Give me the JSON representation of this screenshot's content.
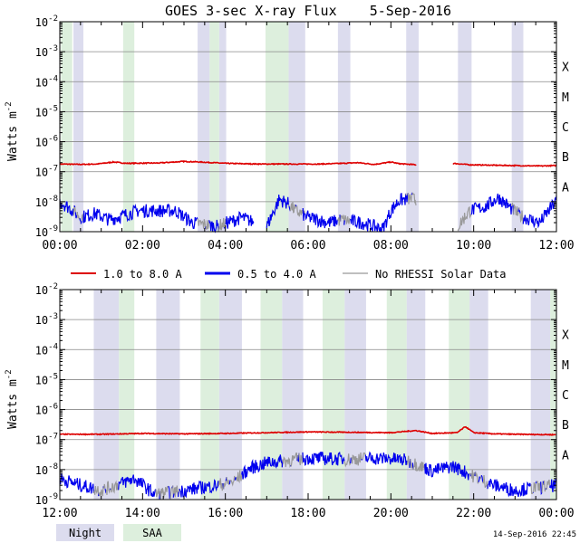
{
  "title": "GOES 3-sec X-ray Flux    5-Sep-2016",
  "ylabel": "Watts m",
  "ylabel_sup": "-2",
  "footer_timestamp": "14-Sep-2016 22:45",
  "legend": {
    "long": "1.0 to 8.0 A",
    "short": "0.5 to 4.0 A",
    "norhessi": "No RHESSI Solar Data",
    "night": "Night",
    "saa": "SAA"
  },
  "colors": {
    "long": "#dd0000",
    "short": "#0000ee",
    "norhessi": "#999999",
    "night": "#dcdcee",
    "saa": "#ddefdd",
    "grid": "#888888"
  },
  "chart_data": [
    {
      "type": "line",
      "panel": "top",
      "x_unit": "hours UT",
      "xlim": [
        0,
        12
      ],
      "x_tick_labels": [
        "00:00",
        "02:00",
        "04:00",
        "06:00",
        "08:00",
        "10:00",
        "12:00"
      ],
      "y_scale": "log",
      "ylim": [
        1e-09,
        0.01
      ],
      "y_tick_labels": [
        {
          "base": "10",
          "exp": "-2"
        },
        {
          "base": "10",
          "exp": "-3"
        },
        {
          "base": "10",
          "exp": "-4"
        },
        {
          "base": "10",
          "exp": "-5"
        },
        {
          "base": "10",
          "exp": "-6"
        },
        {
          "base": "10",
          "exp": "-7"
        },
        {
          "base": "10",
          "exp": "-8"
        },
        {
          "base": "10",
          "exp": "-9"
        }
      ],
      "flare_classes": [
        "X",
        "M",
        "C",
        "B",
        "A"
      ],
      "night_intervals": [
        [
          0.33,
          0.57
        ],
        [
          3.33,
          3.62
        ],
        [
          3.85,
          4.02
        ],
        [
          5.53,
          5.93
        ],
        [
          6.72,
          7.02
        ],
        [
          8.37,
          8.67
        ],
        [
          9.62,
          9.95
        ],
        [
          10.92,
          11.2
        ]
      ],
      "saa_intervals": [
        [
          0.03,
          0.3
        ],
        [
          1.53,
          1.8
        ],
        [
          3.62,
          3.85
        ],
        [
          4.97,
          5.53
        ]
      ],
      "series": [
        {
          "name": "1.0 to 8.0 A",
          "segments": [
            {
              "flux": [
                [
                  0,
                  1.8e-07
                ],
                [
                  0.5,
                  1.75e-07
                ],
                [
                  0.9,
                  1.8e-07
                ],
                [
                  1.3,
                  2.1e-07
                ],
                [
                  1.6,
                  1.9e-07
                ],
                [
                  2.4,
                  1.95e-07
                ],
                [
                  3.0,
                  2.2e-07
                ],
                [
                  3.4,
                  2.1e-07
                ],
                [
                  4.0,
                  1.9e-07
                ],
                [
                  4.8,
                  1.8e-07
                ],
                [
                  5.5,
                  1.8e-07
                ],
                [
                  6.3,
                  1.8e-07
                ],
                [
                  6.85,
                  1.9e-07
                ],
                [
                  7.2,
                  2e-07
                ],
                [
                  7.6,
                  1.75e-07
                ],
                [
                  8.0,
                  2.1e-07
                ],
                [
                  8.2,
                  1.85e-07
                ],
                [
                  8.62,
                  1.7e-07
                ]
              ]
            },
            {
              "flux": [
                [
                  9.5,
                  1.9e-07
                ],
                [
                  9.9,
                  1.7e-07
                ],
                [
                  10.4,
                  1.65e-07
                ],
                [
                  11.0,
                  1.6e-07
                ],
                [
                  11.6,
                  1.55e-07
                ],
                [
                  12.0,
                  1.6e-07
                ]
              ]
            }
          ]
        },
        {
          "name": "0.5 to 4.0 A",
          "segments": [
            {
              "flux": [
                [
                  0,
                  1e-08
                ],
                [
                  0.25,
                  6e-09
                ],
                [
                  0.5,
                  3e-09
                ],
                [
                  0.85,
                  4e-09
                ],
                [
                  1.2,
                  2.5e-09
                ],
                [
                  1.9,
                  5e-09
                ],
                [
                  2.4,
                  5e-09
                ],
                [
                  2.8,
                  5e-09
                ],
                [
                  3.2,
                  2e-09
                ],
                [
                  3.8,
                  1.5e-09
                ],
                [
                  4.4,
                  3e-09
                ],
                [
                  4.7,
                  2e-09
                ]
              ]
            },
            {
              "flux": [
                [
                  5.0,
                  1.5e-09
                ],
                [
                  5.3,
                  1.2e-08
                ],
                [
                  5.5,
                  9e-09
                ],
                [
                  5.7,
                  5e-09
                ],
                [
                  6.0,
                  3e-09
                ],
                [
                  6.5,
                  2e-09
                ],
                [
                  6.8,
                  2.5e-09
                ],
                [
                  7.3,
                  2e-09
                ],
                [
                  7.8,
                  1.2e-09
                ],
                [
                  8.0,
                  5e-09
                ],
                [
                  8.2,
                  1.1e-08
                ],
                [
                  8.5,
                  1.3e-08
                ],
                [
                  8.62,
                  1.1e-08
                ]
              ]
            },
            {
              "flux": [
                [
                  9.62,
                  1.5e-09
                ],
                [
                  9.9,
                  5e-09
                ],
                [
                  10.3,
                  7e-09
                ],
                [
                  10.6,
                  1.4e-08
                ],
                [
                  10.9,
                  6e-09
                ],
                [
                  11.2,
                  3e-09
                ],
                [
                  11.6,
                  2e-09
                ],
                [
                  12.0,
                  1.1e-08
                ]
              ]
            }
          ]
        }
      ]
    },
    {
      "type": "line",
      "panel": "bottom",
      "x_unit": "hours UT",
      "xlim": [
        12,
        24
      ],
      "x_tick_labels": [
        "12:00",
        "14:00",
        "16:00",
        "18:00",
        "20:00",
        "22:00",
        "00:00"
      ],
      "y_scale": "log",
      "ylim": [
        1e-09,
        0.01
      ],
      "y_tick_labels": [
        {
          "base": "10",
          "exp": "-2"
        },
        {
          "base": "10",
          "exp": "-3"
        },
        {
          "base": "10",
          "exp": "-4"
        },
        {
          "base": "10",
          "exp": "-5"
        },
        {
          "base": "10",
          "exp": "-6"
        },
        {
          "base": "10",
          "exp": "-7"
        },
        {
          "base": "10",
          "exp": "-8"
        },
        {
          "base": "10",
          "exp": "-9"
        }
      ],
      "flare_classes": [
        "X",
        "M",
        "C",
        "B",
        "A"
      ],
      "night_intervals": [
        [
          12.82,
          13.43
        ],
        [
          14.33,
          14.9
        ],
        [
          15.85,
          16.4
        ],
        [
          17.37,
          17.88
        ],
        [
          18.88,
          19.4
        ],
        [
          20.38,
          20.83
        ],
        [
          21.9,
          22.35
        ],
        [
          23.38,
          23.85
        ]
      ],
      "saa_intervals": [
        [
          13.43,
          13.8
        ],
        [
          15.4,
          15.85
        ],
        [
          16.85,
          17.37
        ],
        [
          18.35,
          18.88
        ],
        [
          19.9,
          20.38
        ],
        [
          21.4,
          21.9
        ],
        [
          23.85,
          24.0
        ]
      ],
      "series": [
        {
          "name": "1.0 to 8.0 A",
          "segments": [
            {
              "flux": [
                [
                  12.0,
                  1.5e-07
                ],
                [
                  13.0,
                  1.5e-07
                ],
                [
                  14.0,
                  1.6e-07
                ],
                [
                  15.0,
                  1.55e-07
                ],
                [
                  16.0,
                  1.6e-07
                ],
                [
                  17.0,
                  1.7e-07
                ],
                [
                  18.0,
                  1.8e-07
                ],
                [
                  19.0,
                  1.75e-07
                ],
                [
                  20.0,
                  1.7e-07
                ],
                [
                  20.6,
                  2e-07
                ],
                [
                  21.0,
                  1.6e-07
                ],
                [
                  21.6,
                  1.7e-07
                ],
                [
                  21.8,
                  2.7e-07
                ],
                [
                  22.0,
                  1.7e-07
                ],
                [
                  22.5,
                  1.55e-07
                ],
                [
                  23.0,
                  1.5e-07
                ],
                [
                  24.0,
                  1.45e-07
                ]
              ]
            }
          ]
        },
        {
          "name": "0.5 to 4.0 A",
          "segments": [
            {
              "flux": [
                [
                  12.0,
                  5e-09
                ],
                [
                  12.5,
                  3e-09
                ],
                [
                  13.0,
                  2e-09
                ],
                [
                  13.8,
                  5e-09
                ],
                [
                  14.3,
                  1.5e-09
                ],
                [
                  15.0,
                  2e-09
                ],
                [
                  15.8,
                  3e-09
                ],
                [
                  16.2,
                  4e-09
                ],
                [
                  16.6,
                  1.1e-08
                ],
                [
                  17.0,
                  1.7e-08
                ],
                [
                  17.5,
                  2e-08
                ],
                [
                  18.0,
                  2.4e-08
                ],
                [
                  18.5,
                  2.3e-08
                ],
                [
                  19.0,
                  2.2e-08
                ],
                [
                  19.5,
                  2.4e-08
                ],
                [
                  20.0,
                  2.3e-08
                ],
                [
                  20.4,
                  2e-08
                ],
                [
                  21.0,
                  9e-09
                ],
                [
                  21.5,
                  1.3e-08
                ],
                [
                  22.0,
                  6e-09
                ],
                [
                  22.5,
                  3e-09
                ],
                [
                  23.0,
                  2e-09
                ],
                [
                  23.5,
                  2.5e-09
                ],
                [
                  24.0,
                  3e-09
                ]
              ]
            }
          ]
        }
      ]
    }
  ]
}
